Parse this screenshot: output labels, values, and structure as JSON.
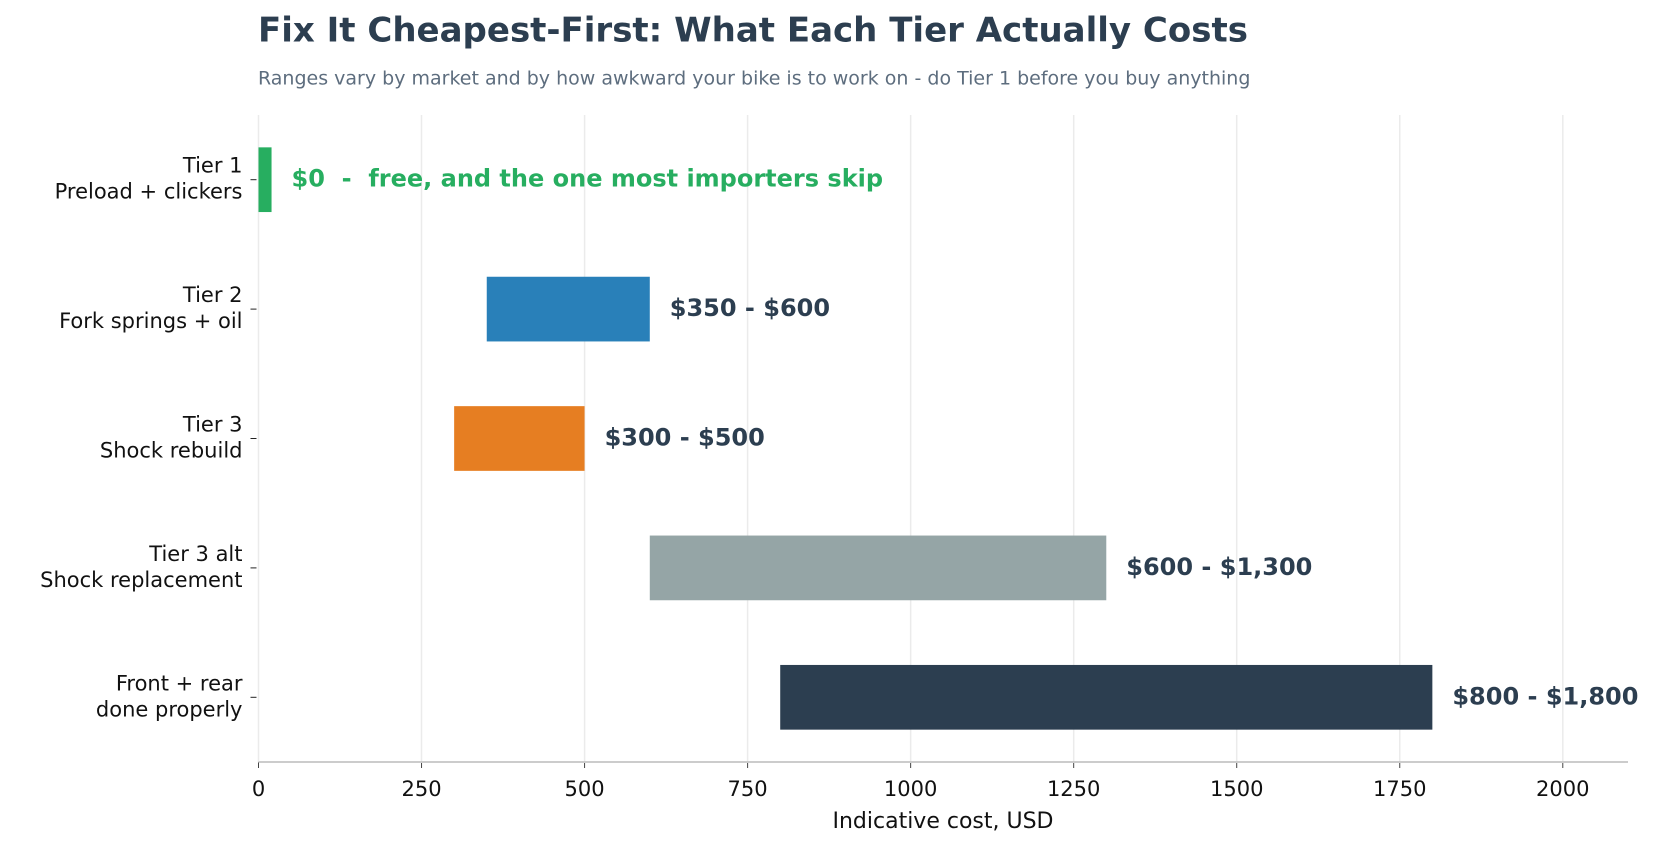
{
  "chart_data": {
    "type": "range-bar",
    "title": "Fix It Cheapest-First: What Each Tier Actually Costs",
    "subtitle": "Ranges vary by market and by how awkward your bike is to work on - do Tier 1 before you buy anything",
    "x_label": "Indicative cost, USD",
    "categories": [
      "Tier 1\nPreload + clickers",
      "Tier 2\nFork springs + oil",
      "Tier 3\nShock rebuild",
      "Tier 3 alt\nShock replacement",
      "Front + rear\ndone properly"
    ],
    "low": [
      0,
      350,
      300,
      600,
      800
    ],
    "high": [
      20,
      600,
      500,
      1300,
      1800
    ],
    "value_labels": [
      "$0  -  free, and the one most importers skip",
      "$350 - $600",
      "$300 - $500",
      "$600 - $1,300",
      "$800 - $1,800"
    ],
    "colors": [
      "#27ae60",
      "#2980b9",
      "#e67e22",
      "#95a5a6",
      "#2c3e50"
    ],
    "label_colors": [
      "#27ae60",
      "#2c3e50",
      "#2c3e50",
      "#2c3e50",
      "#2c3e50"
    ],
    "xlim": [
      0,
      2100
    ],
    "xticks": [
      0,
      250,
      500,
      750,
      1000,
      1250,
      1500,
      1750,
      2000
    ],
    "grid": true
  }
}
